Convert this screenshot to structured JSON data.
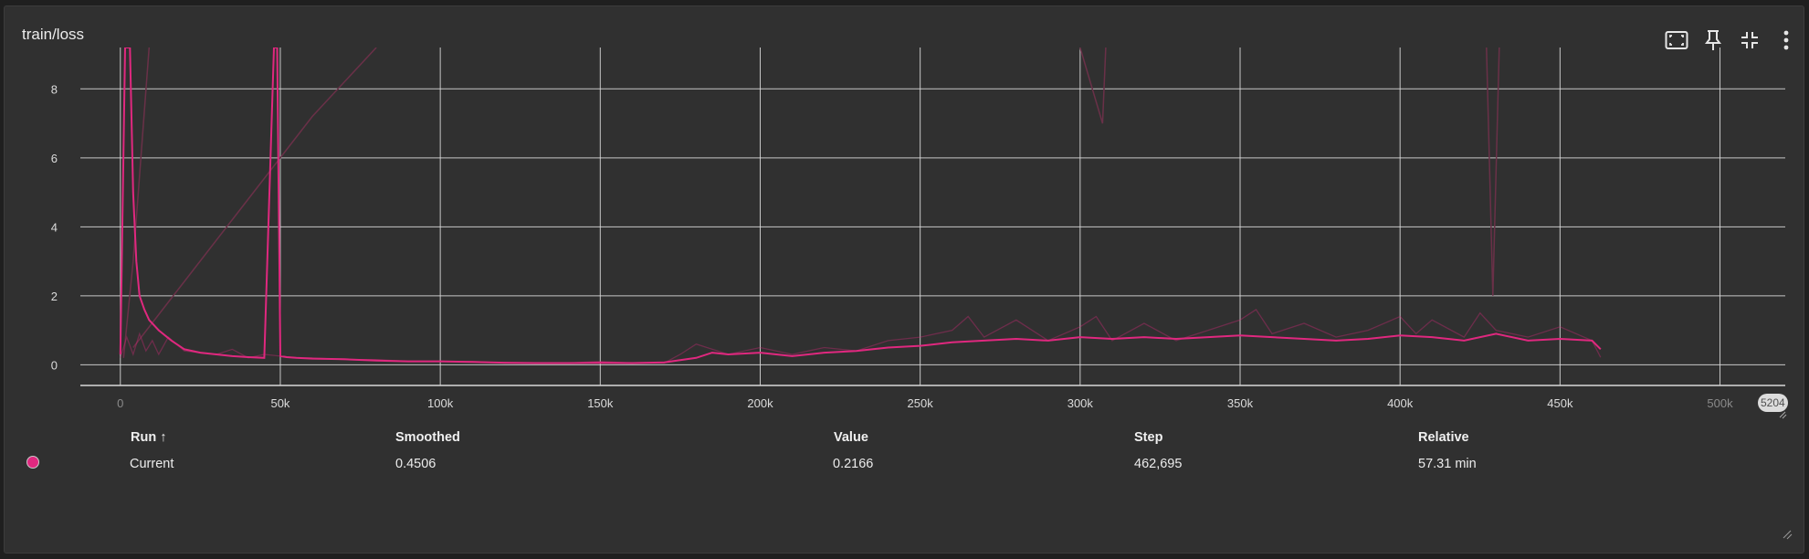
{
  "card": {
    "title": "train/loss"
  },
  "toolbar": {
    "icons": [
      "fit-domain-icon",
      "pin-icon",
      "collapse-icon",
      "more-vert-icon"
    ]
  },
  "colors": {
    "series": "#e0287f",
    "series_faint": "#6a3048",
    "grid": "#d8d8d8",
    "background": "#303030"
  },
  "chart_data": {
    "type": "line",
    "title": "train/loss",
    "xlabel": "",
    "ylabel": "",
    "x_ticks": [
      "0",
      "50k",
      "100k",
      "150k",
      "200k",
      "250k",
      "300k",
      "350k",
      "400k",
      "450k",
      "500k"
    ],
    "x_tick_values": [
      0,
      50000,
      100000,
      150000,
      200000,
      250000,
      300000,
      350000,
      400000,
      450000,
      500000
    ],
    "x_end_label": "5204",
    "y_ticks": [
      0,
      2,
      4,
      6,
      8
    ],
    "xlim": [
      -12500,
      520400
    ],
    "ylim": [
      -0.6,
      9.2
    ],
    "grid": true,
    "series": [
      {
        "name": "Current",
        "style": "smoothed",
        "x": [
          0,
          1500,
          2500,
          3000,
          4000,
          5000,
          6000,
          7500,
          9000,
          12000,
          16000,
          20000,
          25000,
          30000,
          35000,
          40000,
          45000,
          48000,
          49000,
          50000,
          52000,
          55000,
          60000,
          70000,
          80000,
          90000,
          100000,
          110000,
          120000,
          130000,
          140000,
          150000,
          160000,
          170000,
          180000,
          185000,
          190000,
          200000,
          210000,
          220000,
          230000,
          240000,
          250000,
          260000,
          270000,
          280000,
          290000,
          300000,
          310000,
          320000,
          330000,
          340000,
          350000,
          360000,
          370000,
          380000,
          390000,
          400000,
          410000,
          420000,
          430000,
          440000,
          450000,
          460000,
          462695
        ],
        "y": [
          0.3,
          9.2,
          9.2,
          9.2,
          5.0,
          3.0,
          2.0,
          1.6,
          1.3,
          1.0,
          0.7,
          0.45,
          0.35,
          0.3,
          0.25,
          0.22,
          0.2,
          9.2,
          9.2,
          0.25,
          0.22,
          0.2,
          0.18,
          0.16,
          0.12,
          0.1,
          0.1,
          0.08,
          0.06,
          0.05,
          0.05,
          0.06,
          0.05,
          0.07,
          0.2,
          0.35,
          0.3,
          0.35,
          0.25,
          0.35,
          0.4,
          0.5,
          0.55,
          0.65,
          0.7,
          0.75,
          0.7,
          0.8,
          0.75,
          0.8,
          0.75,
          0.8,
          0.85,
          0.8,
          0.75,
          0.7,
          0.75,
          0.85,
          0.8,
          0.7,
          0.9,
          0.7,
          0.75,
          0.7,
          0.4506
        ]
      },
      {
        "name": "Current",
        "style": "raw",
        "x": [
          0,
          2000,
          4000,
          6000,
          8000,
          10000,
          12000,
          15000,
          20000,
          25000,
          30000,
          35000,
          40000,
          45000,
          50000,
          55000,
          60000,
          70000,
          80000,
          90000,
          100000,
          110000,
          120000,
          130000,
          140000,
          150000,
          160000,
          170000,
          175000,
          180000,
          190000,
          200000,
          210000,
          220000,
          230000,
          240000,
          250000,
          260000,
          265000,
          270000,
          280000,
          290000,
          300000,
          305000,
          310000,
          320000,
          330000,
          340000,
          350000,
          355000,
          360000,
          370000,
          380000,
          390000,
          400000,
          405000,
          410000,
          420000,
          425000,
          430000,
          440000,
          450000,
          460000,
          462695
        ],
        "y": [
          0.2,
          0.8,
          0.3,
          0.9,
          0.4,
          0.7,
          0.3,
          0.8,
          0.4,
          0.35,
          0.3,
          0.45,
          0.2,
          0.3,
          0.25,
          0.2,
          0.2,
          0.15,
          0.15,
          0.1,
          0.1,
          0.1,
          0.05,
          0.05,
          0.05,
          0.1,
          0.05,
          0.05,
          0.3,
          0.6,
          0.3,
          0.5,
          0.3,
          0.5,
          0.4,
          0.7,
          0.8,
          1.0,
          1.4,
          0.8,
          1.3,
          0.7,
          1.1,
          1.4,
          0.7,
          1.2,
          0.7,
          1.0,
          1.3,
          1.6,
          0.9,
          1.2,
          0.8,
          1.0,
          1.4,
          0.9,
          1.3,
          0.8,
          1.5,
          1.0,
          0.8,
          1.1,
          0.7,
          0.2166
        ]
      }
    ]
  },
  "table": {
    "headers": {
      "run": "Run ↑",
      "smoothed": "Smoothed",
      "value": "Value",
      "step": "Step",
      "relative": "Relative"
    },
    "rows": [
      {
        "run": "Current",
        "smoothed": "0.4506",
        "value": "0.2166",
        "step": "462,695",
        "relative": "57.31 min"
      }
    ]
  }
}
